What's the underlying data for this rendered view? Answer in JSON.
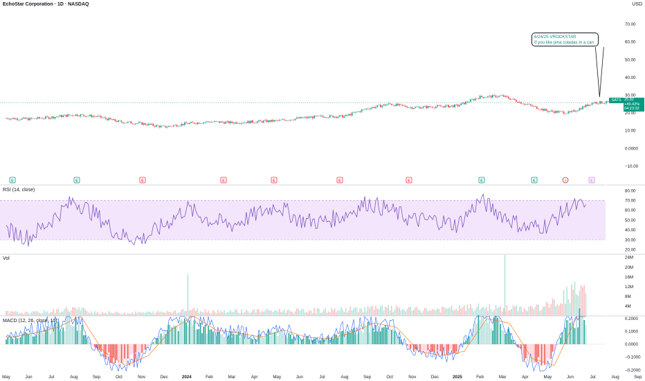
{
  "header": {
    "title": "EchoStar Corporation · 1D · NASDAQ",
    "currency": "USD"
  },
  "symbol": "SATS",
  "last_price": {
    "value": "25.82",
    "change": "+49.42%",
    "countdown": "04:23:32"
  },
  "note": {
    "line1": "6/24/25 VROCKSTAR",
    "line2": "If you like pina coladas in a can"
  },
  "panes": {
    "rsi_label": "RSI (14, close)",
    "volume_label": "Vol",
    "macd_label": "MACD (12, 26, close, 10)"
  },
  "colors": {
    "up": "#26a69a",
    "down": "#ef5350",
    "rsi_line": "#7e57c2",
    "rsi_band": "#f3e5fb",
    "macd_line": "#2962ff",
    "signal_line": "#ff6d00",
    "note_text": "#1a8a84"
  },
  "event_markers": [
    {
      "type": "E",
      "color": "#089981"
    },
    {
      "type": "E",
      "color": "#089981"
    },
    {
      "type": "E",
      "color": "#f23645"
    },
    {
      "type": "E",
      "color": "#f23645"
    },
    {
      "type": "E",
      "color": "#f23645"
    },
    {
      "type": "E",
      "color": "#f23645"
    },
    {
      "type": "E",
      "color": "#f23645"
    },
    {
      "type": "E",
      "color": "#089981"
    },
    {
      "type": "E",
      "color": "#089981"
    },
    {
      "type": "⚡",
      "color": "#9c27b0"
    },
    {
      "type": "E",
      "color": "#c77ddf"
    }
  ],
  "chart_data": [
    {
      "type": "line",
      "name": "price",
      "x": [
        "May",
        "Jun",
        "Jul",
        "Aug",
        "Sep",
        "Oct",
        "Nov",
        "Dec",
        "2024",
        "Feb",
        "Mar",
        "Apr",
        "May",
        "Jun",
        "Jul",
        "Aug",
        "Sep",
        "Oct",
        "Nov",
        "Dec",
        "2025",
        "Feb",
        "Mar",
        "Apr",
        "May",
        "Jun",
        "Jul",
        "Aug",
        "Sep"
      ],
      "y": [
        17,
        16.5,
        17.5,
        19,
        18,
        15,
        14,
        12,
        14,
        15,
        14.5,
        15,
        15.5,
        17,
        18,
        18,
        22.5,
        25,
        23,
        23.5,
        24,
        29,
        29.5,
        25,
        21,
        20,
        25.82,
        null,
        null
      ],
      "ylim": [
        -14,
        77
      ],
      "yticks": [
        -10,
        0,
        10,
        20,
        30,
        40,
        50,
        60,
        70
      ],
      "ytick_labels": [
        "−10.00",
        "0.0000",
        "10.00",
        "20.00",
        "30.00",
        "40.00",
        "50.00",
        "60.00",
        "70.00"
      ]
    },
    {
      "type": "line",
      "name": "RSI",
      "x": [
        "May",
        "Jun",
        "Jul",
        "Aug",
        "Sep",
        "Oct",
        "Nov",
        "Dec",
        "2024",
        "Feb",
        "Mar",
        "Apr",
        "May",
        "Jun",
        "Jul",
        "Aug",
        "Sep",
        "Oct",
        "Nov",
        "Dec",
        "2025",
        "Feb",
        "Mar",
        "Apr",
        "May",
        "Jun"
      ],
      "y": [
        40,
        32,
        50,
        70,
        55,
        35,
        30,
        45,
        62,
        50,
        45,
        55,
        65,
        50,
        48,
        55,
        68,
        60,
        50,
        50,
        45,
        70,
        55,
        42,
        45,
        64
      ],
      "ylim": [
        16,
        85
      ],
      "band": [
        30,
        70
      ],
      "yticks": [
        20,
        30,
        40,
        50,
        60,
        70,
        80
      ],
      "ytick_labels": [
        "20.00",
        "30.00",
        "40.00",
        "50.00",
        "60.00",
        "70.00",
        "80.00"
      ]
    },
    {
      "type": "bar",
      "name": "Volume",
      "x": [
        "May",
        "Jun",
        "Jul",
        "Aug",
        "Sep",
        "Oct",
        "Nov",
        "Dec",
        "2024",
        "Feb",
        "Mar",
        "Apr",
        "May",
        "Jun",
        "Jul",
        "Aug",
        "Sep",
        "Oct",
        "Nov",
        "Dec",
        "2025",
        "Feb",
        "Mar",
        "Apr",
        "May",
        "Jun"
      ],
      "values": [
        1.5,
        1.2,
        1.8,
        3,
        1.5,
        1.2,
        1.3,
        1.5,
        2.5,
        2,
        2,
        2,
        2.2,
        2,
        2.2,
        2.5,
        3,
        3,
        2.5,
        2.5,
        3,
        3.5,
        3,
        3,
        4,
        9
      ],
      "peaks": [
        {
          "x": "Jan 2024",
          "value": 17
        },
        {
          "x": "Mar 2025",
          "value": 25
        },
        {
          "x": "Jun 2025",
          "value": 14
        }
      ],
      "ylim": [
        0,
        25
      ],
      "yticks": [
        4,
        8,
        12,
        16,
        20,
        24
      ],
      "ytick_labels": [
        "4M",
        "8M",
        "12M",
        "16M",
        "20M",
        "24M"
      ]
    },
    {
      "type": "bar",
      "name": "MACD",
      "x": [
        "May",
        "Jun",
        "Jul",
        "Aug",
        "Sep",
        "Oct",
        "Nov",
        "Dec",
        "2024",
        "Feb",
        "Mar",
        "Apr",
        "May",
        "Jun",
        "Jul",
        "Aug",
        "Sep",
        "Oct",
        "Nov",
        "Dec",
        "2025",
        "Feb",
        "Mar",
        "Apr",
        "May",
        "Jun"
      ],
      "values": [
        0.05,
        0.08,
        0.12,
        0.2,
        -0.05,
        -0.15,
        -0.08,
        0.1,
        0.2,
        0.1,
        0.08,
        0.05,
        0.1,
        0.05,
        0.04,
        0.08,
        0.15,
        0.12,
        -0.05,
        -0.08,
        -0.05,
        0.18,
        0.15,
        -0.1,
        -0.15,
        0.2
      ],
      "ylim": [
        -0.205,
        0.215
      ],
      "yticks": [
        -0.2,
        -0.1,
        0,
        0.1,
        0.2
      ],
      "ytick_labels": [
        "−0.2000",
        "−0.1000",
        "0.0000",
        "0.1000",
        "0.2000"
      ]
    }
  ]
}
